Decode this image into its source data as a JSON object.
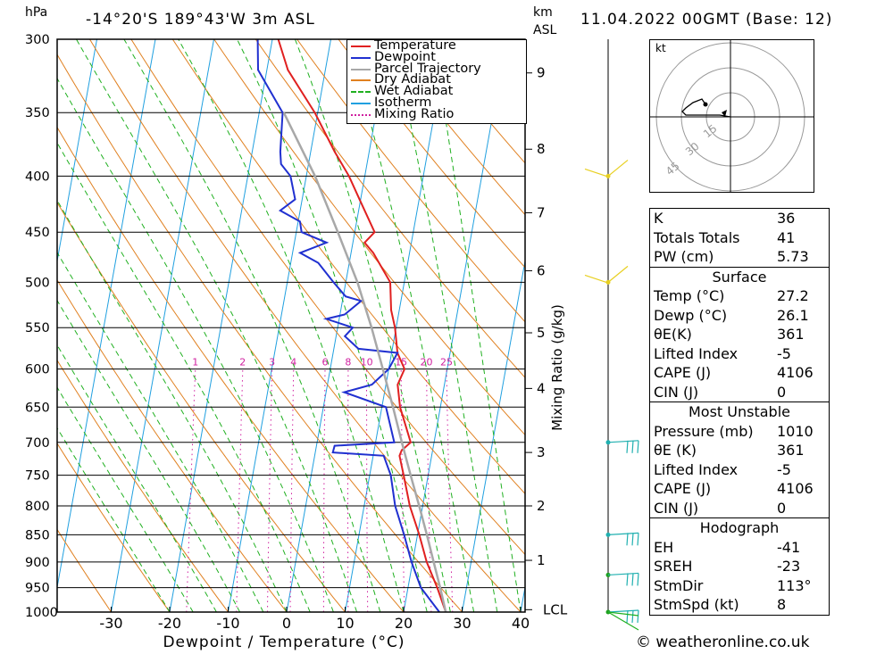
{
  "header": {
    "location": "-14°20'S  189°43'W  3m  ASL",
    "run": "11.04.2022  00GMT  (Base: 12)",
    "hpa_label": "hPa",
    "km_label": "km",
    "asl_label": "ASL",
    "footer": "© weatheronline.co.uk"
  },
  "chart_data": {
    "type": "line",
    "title": "",
    "xlabel": "Dewpoint / Temperature (°C)",
    "ylabel": "hPa",
    "right_axis_label": "Mixing Ratio (g/kg)",
    "x_ticks": [
      -30,
      -20,
      -10,
      0,
      10,
      20,
      30,
      40
    ],
    "pressure_levels": [
      300,
      350,
      400,
      450,
      500,
      550,
      600,
      650,
      700,
      750,
      800,
      850,
      900,
      950,
      1000
    ],
    "height_km_ticks": [
      {
        "label": "9",
        "p": 322
      },
      {
        "label": "8",
        "p": 378
      },
      {
        "label": "7",
        "p": 432
      },
      {
        "label": "6",
        "p": 488
      },
      {
        "label": "5",
        "p": 556
      },
      {
        "label": "4",
        "p": 625
      },
      {
        "label": "3",
        "p": 715
      },
      {
        "label": "2",
        "p": 800
      },
      {
        "label": "1",
        "p": 897
      },
      {
        "label": "LCL",
        "p": 995
      }
    ],
    "mixing_ratio_labels": [
      "1",
      "2",
      "3",
      "4",
      "6",
      "8",
      "10",
      "15",
      "20",
      "25"
    ],
    "series": [
      {
        "name": "Temperature",
        "color": "#e02020",
        "p": [
          1000,
          950,
          900,
          850,
          800,
          750,
          720,
          712,
          700,
          650,
          620,
          600,
          580,
          550,
          530,
          500,
          470,
          460,
          450,
          420,
          400,
          380,
          350,
          320,
          300
        ],
        "t": [
          27.2,
          25.0,
          22.4,
          20.3,
          17.8,
          15.8,
          14.5,
          14.7,
          16.0,
          13.1,
          12.0,
          12.7,
          11.0,
          9.8,
          8.6,
          7.6,
          3.8,
          2.0,
          3.4,
          -0.2,
          -2.7,
          -5.9,
          -10.5,
          -16.4,
          -19.0
        ]
      },
      {
        "name": "Dewpoint",
        "color": "#2030d0",
        "p": [
          1000,
          950,
          900,
          850,
          800,
          750,
          720,
          715,
          705,
          700,
          650,
          630,
          620,
          600,
          580,
          575,
          560,
          550,
          540,
          535,
          520,
          515,
          500,
          480,
          470,
          460,
          450,
          440,
          430,
          420,
          400,
          390,
          380,
          350,
          320,
          300
        ],
        "t": [
          26.1,
          22.2,
          19.8,
          17.7,
          15.3,
          13.6,
          11.8,
          3.0,
          3.1,
          13.2,
          10.7,
          3.1,
          7.6,
          10.0,
          11.0,
          4.2,
          1.5,
          2.6,
          -2.2,
          0.8,
          3.2,
          0.4,
          -2.1,
          -5.3,
          -8.7,
          -4.5,
          -9.1,
          -9.7,
          -13.4,
          -11.2,
          -12.7,
          -14.7,
          -15.2,
          -16.0,
          -21.5,
          -22.5
        ]
      },
      {
        "name": "Parcel Trajectory",
        "color": "#a8a8a8",
        "p": [
          1000,
          950,
          900,
          850,
          800,
          750,
          700,
          650,
          600,
          550,
          500,
          450,
          400,
          350
        ],
        "t": [
          27.2,
          25.5,
          23.6,
          21.6,
          19.4,
          17.0,
          14.5,
          11.9,
          9.0,
          5.8,
          2.0,
          -2.9,
          -8.5,
          -15.8
        ]
      }
    ],
    "legend": [
      {
        "label": "Temperature",
        "color": "#e02020",
        "style": "solid"
      },
      {
        "label": "Dewpoint",
        "color": "#2030d0",
        "style": "solid"
      },
      {
        "label": "Parcel Trajectory",
        "color": "#a8a8a8",
        "style": "solid"
      },
      {
        "label": "Dry Adiabat",
        "color": "#e08020",
        "style": "solid"
      },
      {
        "label": "Wet Adiabat",
        "color": "#20b020",
        "style": "dashed"
      },
      {
        "label": "Isotherm",
        "color": "#20a0e0",
        "style": "solid"
      },
      {
        "label": "Mixing Ratio",
        "color": "#d020a0",
        "style": "dotted"
      }
    ],
    "wind_barbs_p": [
      1000,
      925,
      850,
      700,
      500,
      400
    ]
  },
  "hodograph": {
    "unit_label": "kt",
    "ring_labels": [
      "15",
      "30",
      "45"
    ]
  },
  "indices": {
    "rows": [
      {
        "label": "K",
        "value": "36"
      },
      {
        "label": "Totals Totals",
        "value": "41"
      },
      {
        "label": "PW (cm)",
        "value": "5.73"
      }
    ]
  },
  "surface": {
    "title": "Surface",
    "rows": [
      {
        "label": "Temp (°C)",
        "value": "27.2"
      },
      {
        "label": "Dewp (°C)",
        "value": "26.1"
      },
      {
        "label": "θE(K)",
        "value": "361"
      },
      {
        "label": "Lifted Index",
        "value": "-5"
      },
      {
        "label": "CAPE (J)",
        "value": "4106"
      },
      {
        "label": "CIN (J)",
        "value": "0"
      }
    ]
  },
  "most_unstable": {
    "title": "Most Unstable",
    "rows": [
      {
        "label": "Pressure (mb)",
        "value": "1010"
      },
      {
        "label": "θE (K)",
        "value": "361"
      },
      {
        "label": "Lifted Index",
        "value": "-5"
      },
      {
        "label": "CAPE (J)",
        "value": "4106"
      },
      {
        "label": "CIN (J)",
        "value": "0"
      }
    ]
  },
  "hodograph_table": {
    "title": "Hodograph",
    "rows": [
      {
        "label": "EH",
        "value": "-41"
      },
      {
        "label": "SREH",
        "value": "-23"
      },
      {
        "label": "StmDir",
        "value": "113°"
      },
      {
        "label": "StmSpd (kt)",
        "value": "8"
      }
    ]
  }
}
